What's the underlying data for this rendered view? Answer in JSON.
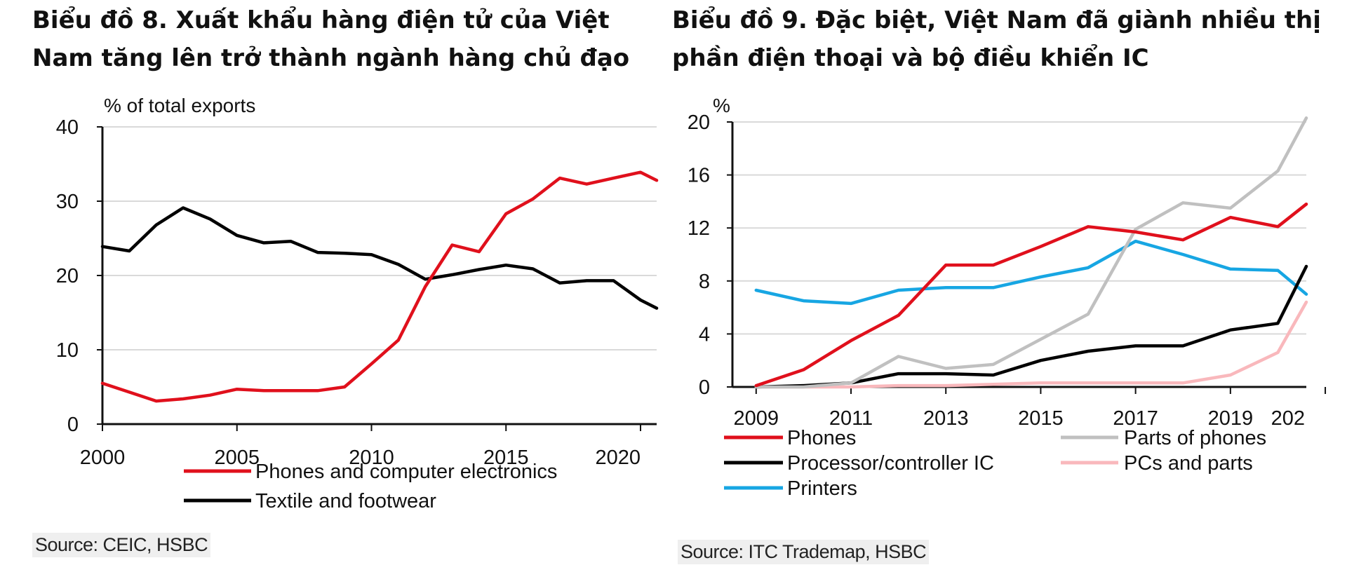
{
  "chart_data": [
    {
      "type": "line",
      "title": "Biểu đồ 8. Xuất khẩu hàng điện tử của Việt Nam tăng lên trở thành ngành hàng chủ đạo",
      "ylabel": "% of total exports",
      "xlabel": "",
      "xlim": [
        2000,
        2020.6
      ],
      "ylim": [
        0,
        40
      ],
      "x_ticks": [
        "2000",
        "2005",
        "2010",
        "2015",
        "2020"
      ],
      "y_ticks": [
        "0",
        "10",
        "20",
        "30",
        "40"
      ],
      "grid": true,
      "legend_position": "bottom",
      "x": [
        2000,
        2001,
        2002,
        2003,
        2004,
        2005,
        2006,
        2007,
        2008,
        2009,
        2010,
        2011,
        2012,
        2013,
        2014,
        2015,
        2016,
        2017,
        2018,
        2019,
        2020,
        2020.6
      ],
      "series": [
        {
          "name": "Phones and computer electronics",
          "color": "#e0101c",
          "values": [
            5.5,
            4.3,
            3.1,
            3.4,
            3.9,
            4.7,
            4.5,
            4.5,
            4.5,
            5.0,
            8.1,
            11.3,
            18.5,
            24.1,
            23.2,
            28.3,
            30.3,
            33.1,
            32.3,
            33.1,
            33.9,
            32.8
          ]
        },
        {
          "name": "Textile and footwear",
          "color": "#000000",
          "values": [
            23.9,
            23.3,
            26.8,
            29.1,
            27.6,
            25.4,
            24.4,
            24.6,
            23.1,
            23.0,
            22.8,
            21.5,
            19.5,
            20.1,
            20.8,
            21.4,
            20.9,
            19.0,
            19.3,
            19.3,
            16.7,
            15.6
          ]
        }
      ],
      "source": "Source: CEIC, HSBC"
    },
    {
      "type": "line",
      "title": "Biểu đồ 9. Đặc biệt, Việt Nam đã giành nhiều thị phần điện thoại và bộ điều khiển IC",
      "ylabel": "%",
      "xlabel": "",
      "xlim": [
        2008.5,
        2020.6
      ],
      "ylim": [
        0,
        20
      ],
      "x_ticks": [
        "2009",
        "2011",
        "2013",
        "2015",
        "2017",
        "2019",
        "202"
      ],
      "y_ticks": [
        "0",
        "4",
        "8",
        "12",
        "16",
        "20"
      ],
      "grid": true,
      "legend_position": "bottom",
      "x": [
        2009,
        2010,
        2011,
        2012,
        2013,
        2014,
        2015,
        2016,
        2017,
        2018,
        2019,
        2020,
        2020.6
      ],
      "series": [
        {
          "name": "Phones",
          "color": "#e0101c",
          "values": [
            0.1,
            1.3,
            3.5,
            5.4,
            9.2,
            9.2,
            10.6,
            12.1,
            11.7,
            11.1,
            12.8,
            12.1,
            13.8
          ]
        },
        {
          "name": "Parts of phones",
          "color": "#c0c0c0",
          "values": [
            0,
            0,
            0.3,
            2.3,
            1.4,
            1.7,
            3.6,
            5.5,
            11.9,
            13.9,
            13.5,
            16.3,
            20.3
          ]
        },
        {
          "name": "Processor/controller IC",
          "color": "#000000",
          "values": [
            0,
            0.1,
            0.3,
            1.0,
            1.0,
            0.9,
            2.0,
            2.7,
            3.1,
            3.1,
            4.3,
            4.8,
            9.1
          ]
        },
        {
          "name": "PCs and parts",
          "color": "#f9b8bc",
          "values": [
            0,
            0,
            0,
            0.1,
            0.1,
            0.2,
            0.3,
            0.3,
            0.3,
            0.3,
            0.9,
            2.6,
            6.4
          ]
        },
        {
          "name": "Printers",
          "color": "#17a6e3",
          "values": [
            7.3,
            6.5,
            6.3,
            7.3,
            7.5,
            7.5,
            8.3,
            9.0,
            11.0,
            10.0,
            8.9,
            8.8,
            7.0
          ]
        }
      ],
      "source": "Source: ITC Trademap, HSBC"
    }
  ]
}
